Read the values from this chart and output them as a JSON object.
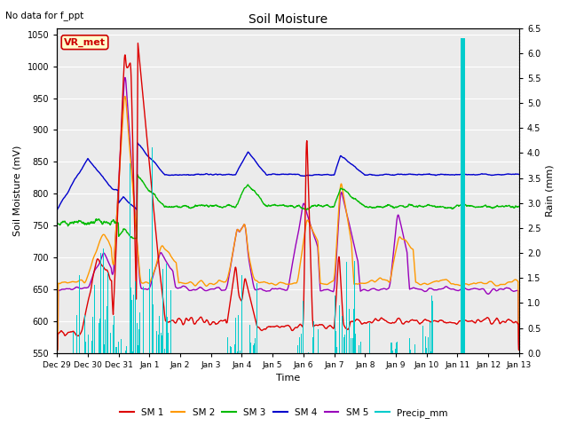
{
  "title": "Soil Moisture",
  "subtitle": "No data for f_ppt",
  "xlabel": "Time",
  "ylabel_left": "Soil Moisture (mV)",
  "ylabel_right": "Rain (mm)",
  "ylim_left": [
    550,
    1060
  ],
  "ylim_right": [
    0.0,
    6.5
  ],
  "yticks_left": [
    550,
    600,
    650,
    700,
    750,
    800,
    850,
    900,
    950,
    1000,
    1050
  ],
  "yticks_right": [
    0.0,
    0.5,
    1.0,
    1.5,
    2.0,
    2.5,
    3.0,
    3.5,
    4.0,
    4.5,
    5.0,
    5.5,
    6.0,
    6.5
  ],
  "bg_color": "#ffffff",
  "plot_bg": "#ebebeb",
  "legend_label": "VR_met",
  "sm1_color": "#dd0000",
  "sm2_color": "#ff9900",
  "sm3_color": "#00bb00",
  "sm4_color": "#0000cc",
  "sm5_color": "#9900bb",
  "precip_color": "#00cccc",
  "tick_labels": [
    "Dec 29",
    "Dec 30",
    "Dec 31",
    "Jan 1",
    "Jan 2",
    "Jan 3",
    "Jan 4",
    "Jan 5",
    "Jan 6",
    "Jan 7",
    "Jan 8",
    "Jan 9",
    "Jan 10",
    "Jan 11",
    "Jan 12",
    "Jan 13"
  ]
}
